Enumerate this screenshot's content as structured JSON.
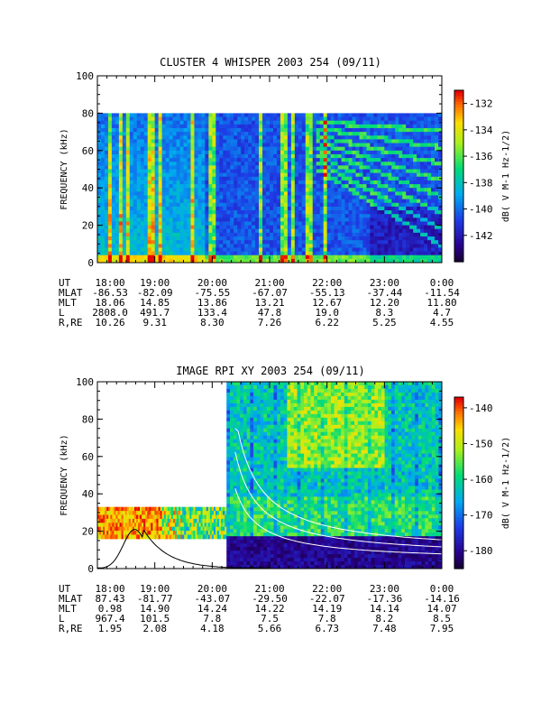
{
  "chart_data": [
    {
      "type": "heatmap",
      "title": "CLUSTER 4 WHISPER 2003 254 (09/11)",
      "ylabel": "FREQUENCY (kHz)",
      "ylim": [
        0,
        100
      ],
      "yticks": [
        0,
        20,
        40,
        60,
        80,
        100
      ],
      "data_ylim": [
        0,
        80
      ],
      "x_ticks": [
        "18:00",
        "19:00",
        "20:00",
        "21:00",
        "22:00",
        "23:00",
        "0:00"
      ],
      "colorbar": {
        "label": "dB( V M-1 Hz-1/2)",
        "ticks": [
          -132,
          -134,
          -136,
          -138,
          -140,
          -142
        ],
        "range": [
          -144,
          -131
        ]
      },
      "ephemeris": [
        {
          "label": "UT",
          "values": [
            "18:00",
            "19:00",
            "20:00",
            "21:00",
            "22:00",
            "23:00",
            "0:00"
          ]
        },
        {
          "label": "MLAT",
          "values": [
            "-86.53",
            "-82.09",
            "-75.55",
            "-67.07",
            "-55.13",
            "-37.44",
            "-11.54"
          ]
        },
        {
          "label": "MLT",
          "values": [
            "18.06",
            "14.85",
            "13.86",
            "13.21",
            "12.67",
            "12.20",
            "11.80"
          ]
        },
        {
          "label": "L",
          "values": [
            "2808.0",
            "491.7",
            "133.4",
            "47.8",
            "19.0",
            "8.3",
            "4.7"
          ]
        },
        {
          "label": "R,RE",
          "values": [
            "10.26",
            "9.31",
            "8.30",
            "7.26",
            "6.22",
            "5.25",
            "4.55"
          ]
        }
      ]
    },
    {
      "type": "heatmap",
      "title": "IMAGE RPI XY 2003 254 (09/11)",
      "ylabel": "FREQUENCY (kHz)",
      "ylim": [
        0,
        100
      ],
      "yticks": [
        0,
        20,
        40,
        60,
        80,
        100
      ],
      "x_ticks": [
        "18:00",
        "19:00",
        "20:00",
        "21:00",
        "22:00",
        "23:00",
        "0:00"
      ],
      "colorbar": {
        "label": "dB( V M-1 Hz-1/2)",
        "ticks": [
          -140,
          -150,
          -160,
          -170,
          -180
        ],
        "range": [
          -185,
          -137
        ]
      },
      "ephemeris": [
        {
          "label": "UT",
          "values": [
            "18:00",
            "19:00",
            "20:00",
            "21:00",
            "22:00",
            "23:00",
            "0:00"
          ]
        },
        {
          "label": "MLAT",
          "values": [
            "87.43",
            "-81.77",
            "-43.07",
            "-29.50",
            "-22.07",
            "-17.36",
            "-14.16"
          ]
        },
        {
          "label": "MLT",
          "values": [
            "0.98",
            "14.90",
            "14.24",
            "14.22",
            "14.19",
            "14.14",
            "14.07"
          ]
        },
        {
          "label": "L",
          "values": [
            "967.4",
            "101.5",
            "7.8",
            "7.5",
            "7.8",
            "8.2",
            "8.5"
          ]
        },
        {
          "label": "R,RE",
          "values": [
            "1.95",
            "2.08",
            "4.18",
            "5.66",
            "6.73",
            "7.48",
            "7.95"
          ]
        }
      ]
    }
  ]
}
